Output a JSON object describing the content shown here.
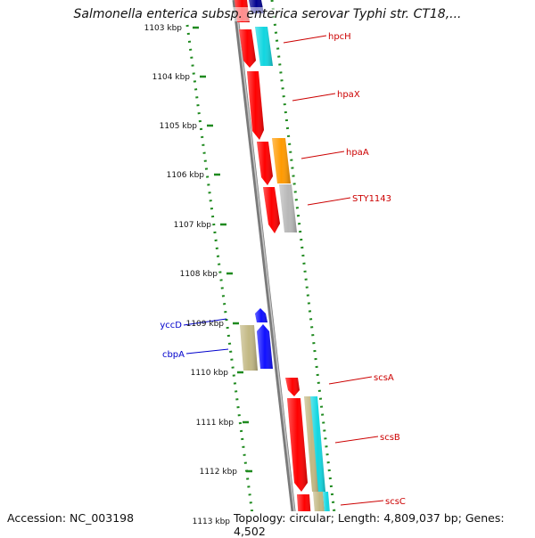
{
  "title": "Salmonella enterica subsp. enterica serovar Typhi str. CT18,...",
  "footer": {
    "accession": "Accession: NC_003198",
    "stats": "Topology: circular; Length: 4,809,037 bp; Genes: 4,502"
  },
  "ruler": {
    "unit": "kbp",
    "ticks": [
      "1103 kbp",
      "1104 kbp",
      "1105 kbp",
      "1106 kbp",
      "1107 kbp",
      "1108 kbp",
      "1109 kbp",
      "1110 kbp",
      "1111 kbp",
      "1112 kbp",
      "1113 kbp"
    ]
  },
  "colors": {
    "red": "#ff0000",
    "navy": "#000090",
    "cyan": "#11d6e0",
    "orange": "#ff9a00",
    "gray": "#b8b8b8",
    "blue": "#1010ff",
    "khaki": "#c2b883",
    "backbone": "#8a8a8a",
    "dots": "#1f8a1f",
    "label_red": "#cc0000",
    "label_blue": "#0000cc"
  },
  "genes": [
    {
      "name": "hpcH",
      "color": "red"
    },
    {
      "name": "hpaX",
      "color": "red"
    },
    {
      "name": "hpaA",
      "color": "red"
    },
    {
      "name": "STY1143",
      "color": "red"
    },
    {
      "name": "yccD",
      "color": "blue"
    },
    {
      "name": "cbpA",
      "color": "blue"
    },
    {
      "name": "scsA",
      "color": "red"
    },
    {
      "name": "scsB",
      "color": "red"
    },
    {
      "name": "scsC",
      "color": "red"
    }
  ]
}
